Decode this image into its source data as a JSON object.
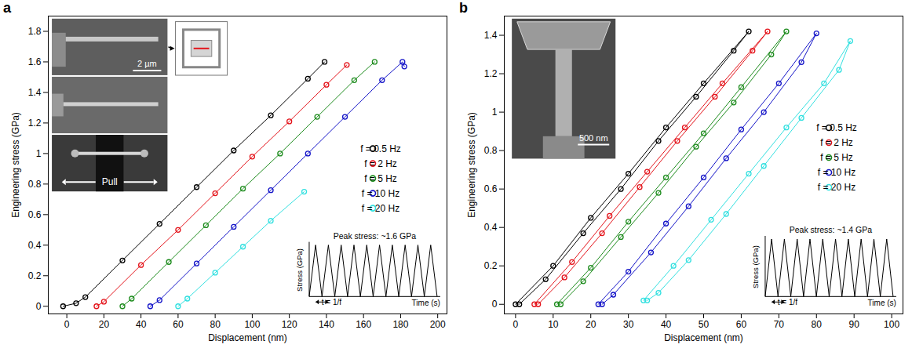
{
  "chart_data": [
    {
      "type": "line",
      "title": "a",
      "xlabel": "Displacement (nm)",
      "ylabel": "Engineering stress (GPa)",
      "xlim": [
        -10,
        205
      ],
      "xticks": [
        0,
        20,
        40,
        60,
        80,
        100,
        120,
        140,
        160,
        180,
        200
      ],
      "ylim": [
        -0.05,
        1.9
      ],
      "yticks": [
        0,
        0.2,
        0.4,
        0.6,
        0.8,
        1,
        1.2,
        1.4,
        1.6,
        1.8
      ],
      "marker": "circle",
      "legend": "right",
      "annotations": [
        "2 µm",
        "Pull"
      ],
      "inset": {
        "title": "Peak stress: ~1.6 GPa",
        "ylabel": "Stress (GPa)",
        "xlabel": "Time (s)",
        "period_label": "t = 1/f"
      },
      "series": [
        {
          "name": "f = 0.5 Hz",
          "color": "#000000",
          "x": [
            -2,
            5,
            10,
            30,
            50,
            70,
            90,
            110,
            130,
            139
          ],
          "values": [
            0,
            0.02,
            0.06,
            0.3,
            0.54,
            0.78,
            1.02,
            1.25,
            1.49,
            1.6
          ]
        },
        {
          "name": "f = 2 Hz",
          "color": "#e4141b",
          "x": [
            16,
            20,
            40,
            60,
            80,
            100,
            120,
            140,
            151
          ],
          "values": [
            0,
            0.03,
            0.27,
            0.5,
            0.74,
            0.98,
            1.21,
            1.45,
            1.58
          ]
        },
        {
          "name": "f = 5 Hz",
          "color": "#1e8c1e",
          "x": [
            30,
            35,
            55,
            75,
            95,
            115,
            135,
            155,
            166
          ],
          "values": [
            0,
            0.05,
            0.29,
            0.53,
            0.77,
            1.0,
            1.24,
            1.48,
            1.6
          ]
        },
        {
          "name": "f = 10 Hz",
          "color": "#1414c8",
          "x": [
            45,
            50,
            70,
            90,
            110,
            130,
            150,
            170,
            181,
            182
          ],
          "values": [
            0,
            0.04,
            0.28,
            0.52,
            0.76,
            1.0,
            1.24,
            1.48,
            1.6,
            1.57
          ]
        },
        {
          "name": "f = 20 Hz",
          "color": "#33e0e0",
          "x": [
            60,
            65,
            80,
            95,
            110,
            128
          ],
          "values": [
            0,
            0.05,
            0.22,
            0.39,
            0.56,
            0.75
          ]
        }
      ]
    },
    {
      "type": "line",
      "title": "b",
      "xlabel": "Displacement (nm)",
      "ylabel": "Engineering stress (GPa)",
      "xlim": [
        -3,
        103
      ],
      "xticks": [
        0,
        10,
        20,
        30,
        40,
        50,
        60,
        70,
        80,
        90,
        100
      ],
      "ylim": [
        -0.05,
        1.5
      ],
      "yticks": [
        0,
        0.2,
        0.4,
        0.6,
        0.8,
        1,
        1.2,
        1.4
      ],
      "marker": "circle",
      "legend": "right",
      "annotations": [
        "500 nm"
      ],
      "inset": {
        "title": "Peak stress: ~1.4 GPa",
        "ylabel": "Stress (GPa)",
        "xlabel": "Time (s)",
        "period_label": "t = 1/f"
      },
      "series": [
        {
          "name": "f = 0.5 Hz",
          "color": "#000000",
          "x": [
            0,
            10,
            20,
            30,
            40,
            50,
            62,
            58,
            48,
            38,
            28,
            18,
            8,
            1
          ],
          "values": [
            0,
            0.2,
            0.45,
            0.68,
            0.92,
            1.15,
            1.42,
            1.32,
            1.08,
            0.85,
            0.6,
            0.37,
            0.13,
            0
          ]
        },
        {
          "name": "f = 2 Hz",
          "color": "#e4141b",
          "x": [
            5,
            15,
            25,
            35,
            45,
            55,
            67,
            63,
            53,
            43,
            33,
            23,
            13,
            6
          ],
          "values": [
            0,
            0.22,
            0.46,
            0.69,
            0.92,
            1.15,
            1.42,
            1.32,
            1.08,
            0.85,
            0.61,
            0.37,
            0.14,
            0
          ]
        },
        {
          "name": "f = 5 Hz",
          "color": "#1e8c1e",
          "x": [
            11,
            20,
            30,
            40,
            50,
            60,
            72,
            68,
            58,
            48,
            38,
            28,
            18,
            12
          ],
          "values": [
            0,
            0.19,
            0.43,
            0.66,
            0.89,
            1.13,
            1.42,
            1.3,
            1.05,
            0.82,
            0.58,
            0.35,
            0.12,
            0
          ]
        },
        {
          "name": "f = 10 Hz",
          "color": "#1414c8",
          "x": [
            22,
            30,
            40,
            50,
            60,
            70,
            80,
            76,
            66,
            56,
            46,
            36,
            26,
            23
          ],
          "values": [
            0,
            0.17,
            0.42,
            0.66,
            0.91,
            1.15,
            1.41,
            1.26,
            1.0,
            0.76,
            0.51,
            0.27,
            0.05,
            0
          ]
        },
        {
          "name": "f = 20 Hz",
          "color": "#33e0e0",
          "x": [
            34,
            42,
            52,
            62,
            72,
            82,
            89,
            86,
            76,
            66,
            56,
            46,
            38,
            35
          ],
          "values": [
            0.02,
            0.2,
            0.44,
            0.68,
            0.92,
            1.15,
            1.37,
            1.22,
            0.97,
            0.72,
            0.47,
            0.23,
            0.06,
            0.02
          ]
        }
      ]
    }
  ]
}
